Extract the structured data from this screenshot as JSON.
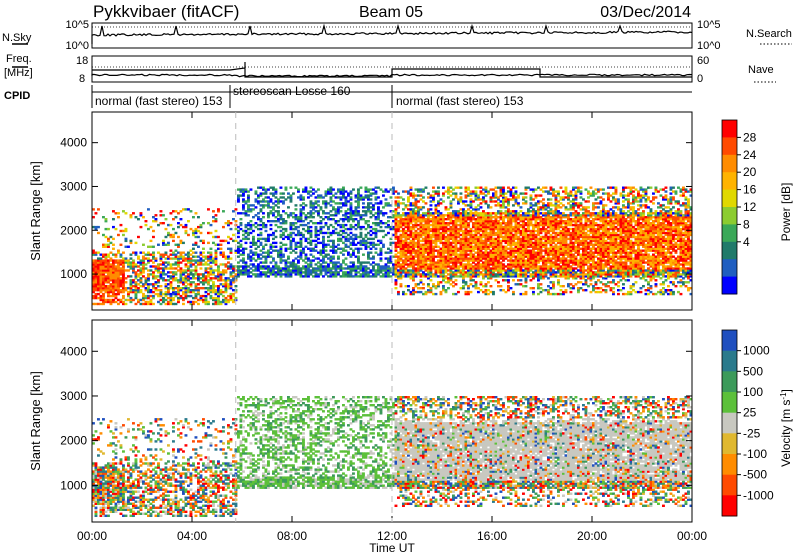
{
  "header": {
    "station": "Pykkvibaer (fitACF)",
    "beam": "Beam 05",
    "date": "03/Dec/2014"
  },
  "top_panels": {
    "nsky_label": "N.Sky",
    "nsearch_label": "N.Search",
    "nsky_ticks": [
      "10^5",
      "10^0"
    ],
    "nsearch_ticks": [
      "10^5",
      "10^0"
    ],
    "freq_label_line1": "Freq.",
    "freq_label_line2": "[MHz]",
    "freq_ticks": [
      "18",
      "8"
    ],
    "nave_label": "Nave",
    "nave_ticks": [
      "60",
      "0"
    ],
    "cpid_label": "CPID",
    "cpid_segments": [
      {
        "label": "normal (fast stereo) 153",
        "start_h": 0,
        "end_h": 5.75
      },
      {
        "label": "stereoscan Losse 160",
        "start_h": 5.75,
        "end_h": 12
      },
      {
        "label": "normal (fast stereo) 153",
        "start_h": 12,
        "end_h": 24
      }
    ]
  },
  "chart_data": [
    {
      "type": "heatmap",
      "title": "",
      "xlabel": "Time UT",
      "ylabel": "Slant Range [km]",
      "x_ticks": [
        "00:00",
        "04:00",
        "08:00",
        "12:00",
        "16:00",
        "20:00",
        "00:00"
      ],
      "x_tick_values_h": [
        0,
        4,
        8,
        12,
        16,
        20,
        24
      ],
      "xlim_h": [
        0,
        24
      ],
      "y_ticks": [
        1000,
        2000,
        3000,
        4000
      ],
      "ylim": [
        180,
        4700
      ],
      "colorbar": {
        "label": "Power [dB]",
        "ticks": [
          "28",
          "24",
          "20",
          "16",
          "12",
          "8",
          "4"
        ],
        "colors": [
          "#ff0000",
          "#ff4a00",
          "#ff8c00",
          "#ffb300",
          "#e0d800",
          "#8ccc30",
          "#3aa858",
          "#207a6a",
          "#1f5ec0",
          "#0000ff"
        ]
      },
      "echo_regions": [
        {
          "t0": 0,
          "t1": 5.75,
          "r0": 500,
          "r1": 2500,
          "level": "mixed low-range, strong 600-1200 km near 00-01 UT"
        },
        {
          "t0": 5.75,
          "t1": 12,
          "r0": 900,
          "r1": 3000,
          "level": "weak 4-12 dB, moderate 900-1100 km band"
        },
        {
          "t0": 12,
          "t1": 24,
          "r0": 500,
          "r1": 3000,
          "level": "strong 20-30 dB, 1000-2400 km"
        }
      ]
    },
    {
      "type": "heatmap",
      "title": "",
      "xlabel": "Time UT",
      "ylabel": "Slant Range [km]",
      "x_ticks": [
        "00:00",
        "04:00",
        "08:00",
        "12:00",
        "16:00",
        "20:00",
        "00:00"
      ],
      "x_tick_values_h": [
        0,
        4,
        8,
        12,
        16,
        20,
        24
      ],
      "xlim_h": [
        0,
        24
      ],
      "y_ticks": [
        1000,
        2000,
        3000,
        4000
      ],
      "ylim": [
        180,
        4700
      ],
      "colorbar": {
        "label": "Velocity [m s^-1]",
        "ticks": [
          "1000",
          "500",
          "100",
          "25",
          "-25",
          "-100",
          "-500",
          "-1000"
        ],
        "colors": [
          "#1f4fbf",
          "#2a7a8c",
          "#3c9a5a",
          "#5cc03a",
          "#c8c8c0",
          "#e0b830",
          "#ff8c00",
          "#ff4a00",
          "#ff0000"
        ]
      },
      "echo_regions": [
        {
          "t0": 0,
          "t1": 5.75,
          "r0": 500,
          "r1": 2500,
          "level": "mixed, mostly -100 to 100 m/s"
        },
        {
          "t0": 5.75,
          "t1": 12,
          "r0": 900,
          "r1": 3000,
          "level": "green/grey, low velocities"
        },
        {
          "t0": 12,
          "t1": 24,
          "r0": 600,
          "r1": 3000,
          "level": "ground scatter grey (-25 to 25) with green and orange"
        }
      ]
    }
  ]
}
